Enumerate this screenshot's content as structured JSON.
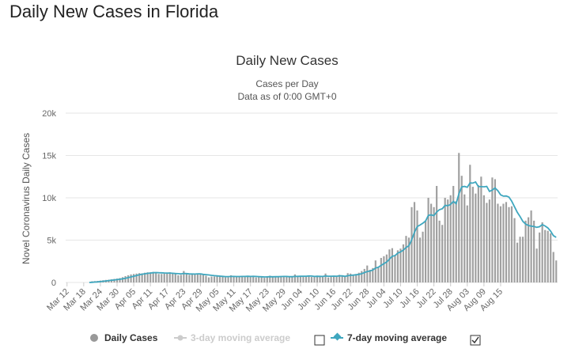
{
  "page": {
    "title": "Daily New Cases in Florida"
  },
  "chart_data": {
    "type": "bar",
    "title": "Daily New Cases",
    "subtitle": "Cases per Day",
    "subtitle2": "Data as of 0:00 GMT+0",
    "ylabel": "Novel Coronavirus Daily Cases",
    "xlabel": "",
    "ylim": [
      0,
      20000
    ],
    "yticks": [
      0,
      5000,
      10000,
      15000,
      20000
    ],
    "ytick_labels": [
      "0",
      "5k",
      "10k",
      "15k",
      "20k"
    ],
    "xtick_labels": [
      "Mar 12",
      "Mar 18",
      "Mar 24",
      "Mar 30",
      "Apr 05",
      "Apr 11",
      "Apr 17",
      "Apr 23",
      "Apr 29",
      "May 05",
      "May 11",
      "May 17",
      "May 23",
      "May 29",
      "Jun 04",
      "Jun 10",
      "Jun 16",
      "Jun 22",
      "Jun 28",
      "Jul 04",
      "Jul 10",
      "Jul 16",
      "Jul 22",
      "Jul 28",
      "Aug 03",
      "Aug 09",
      "Aug 15"
    ],
    "x_start": "Mar 12",
    "grid": true,
    "legend_position": "bottom",
    "series": [
      {
        "name": "Daily Cases",
        "kind": "bar",
        "color": "#a0a0a0",
        "values": [
          0,
          0,
          0,
          0,
          0,
          0,
          0,
          0,
          0,
          140,
          160,
          180,
          220,
          260,
          300,
          320,
          360,
          420,
          460,
          520,
          620,
          750,
          850,
          950,
          1000,
          1050,
          1100,
          1080,
          1150,
          1200,
          1200,
          1250,
          1180,
          1000,
          1000,
          1050,
          1100,
          1200,
          1050,
          1000,
          850,
          900,
          1350,
          1000,
          900,
          1000,
          950,
          1000,
          950,
          900,
          800,
          600,
          700,
          700,
          800,
          750,
          700,
          600,
          600,
          850,
          700,
          700,
          750,
          750,
          650,
          700,
          700,
          800,
          600,
          650,
          600,
          550,
          750,
          800,
          750,
          700,
          650,
          700,
          650,
          700,
          650,
          700,
          950,
          700,
          750,
          750,
          700,
          800,
          650,
          650,
          800,
          700,
          700,
          1050,
          600,
          700,
          700,
          750,
          900,
          700,
          700,
          1100,
          1050,
          900,
          1000,
          1150,
          1350,
          1600,
          2000,
          1500,
          1700,
          2600,
          1800,
          2900,
          3100,
          3300,
          3900,
          4050,
          3200,
          3800,
          4000,
          4500,
          5500,
          5300,
          8900,
          9500,
          8500,
          5300,
          6000,
          7300,
          10000,
          9300,
          8900,
          11400,
          7300,
          6800,
          10000,
          9800,
          10300,
          11400,
          9600,
          15300,
          12600,
          10400,
          9100,
          13900,
          11300,
          10500,
          11500,
          12500,
          10300,
          9400,
          9800,
          12400,
          12200,
          9300,
          9000,
          9300,
          9500,
          8900,
          9000,
          7600,
          4700,
          5400,
          5400,
          7300,
          7700,
          8500,
          7300,
          4000,
          5900,
          7100,
          6200,
          6100,
          5800,
          3600,
          2600
        ]
      },
      {
        "name": "3-day moving average",
        "kind": "line",
        "color": "#cccccc",
        "visible": false
      },
      {
        "name": "7-day moving average",
        "kind": "line",
        "color": "#3fa7bf",
        "visible": true
      }
    ]
  },
  "legend": {
    "items": [
      {
        "label": "Daily Cases",
        "color": "#333333",
        "marker": "circle",
        "marker_color": "#999999"
      },
      {
        "label": "3-day moving average",
        "color": "#cccccc",
        "marker": "line-dot",
        "marker_color": "#cccccc"
      },
      {
        "label": "7-day moving average",
        "color": "#333333",
        "marker": "line-diamond",
        "marker_color": "#3fa7bf"
      }
    ]
  }
}
